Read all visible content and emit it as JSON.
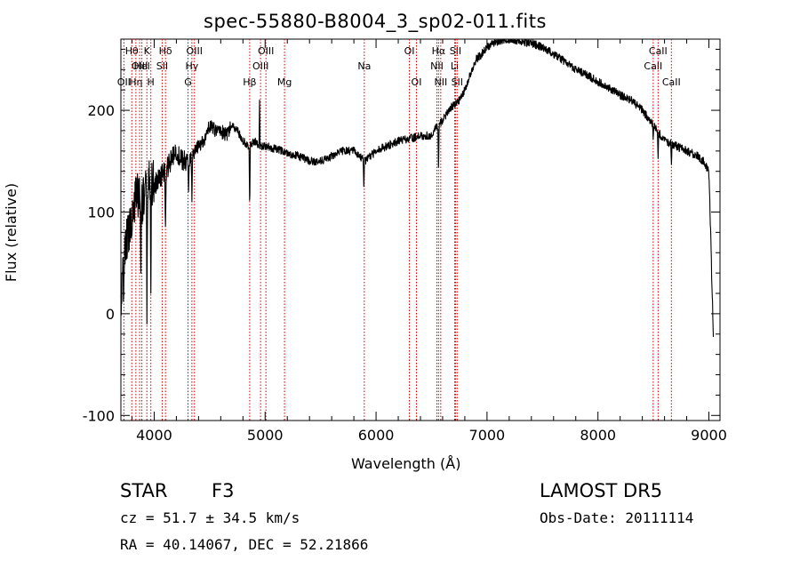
{
  "chart_data": {
    "type": "line",
    "title": "spec-55880-B8004_3_sp02-011.fits",
    "xlabel": "Wavelength (Å)",
    "ylabel": "Flux (relative)",
    "xlim": [
      3700,
      9100
    ],
    "ylim": [
      -105,
      270
    ],
    "xticks": [
      4000,
      5000,
      6000,
      7000,
      8000,
      9000
    ],
    "yticks": [
      -100,
      0,
      100,
      200
    ],
    "grid": false,
    "legend": "none",
    "series": [
      {
        "x": [
          3700,
          3750,
          3800,
          3850,
          3900,
          3950,
          4000,
          4050,
          4100,
          4150,
          4200,
          4250,
          4300,
          4350,
          4400,
          4450,
          4500,
          4550,
          4600,
          4650,
          4700,
          4750,
          4800,
          4850,
          4900,
          4950,
          5000,
          5100,
          5200,
          5300,
          5400,
          5500,
          5600,
          5700,
          5800,
          5900,
          6000,
          6100,
          6200,
          6300,
          6400,
          6500,
          6550,
          6600,
          6650,
          6700,
          6750,
          6800,
          6850,
          6900,
          6950,
          7000,
          7100,
          7200,
          7300,
          7400,
          7500,
          7600,
          7700,
          7800,
          7900,
          8000,
          8100,
          8200,
          8300,
          8400,
          8500,
          8600,
          8700,
          8800,
          8900,
          8950,
          9000,
          9020,
          9040
        ],
        "y": [
          10,
          70,
          100,
          120,
          110,
          130,
          125,
          135,
          140,
          150,
          160,
          150,
          150,
          155,
          165,
          170,
          185,
          180,
          180,
          175,
          185,
          180,
          170,
          165,
          170,
          165,
          165,
          162,
          158,
          155,
          150,
          150,
          155,
          160,
          160,
          150,
          160,
          165,
          170,
          172,
          175,
          175,
          185,
          190,
          200,
          205,
          210,
          220,
          235,
          250,
          255,
          262,
          268,
          270,
          268,
          266,
          262,
          255,
          248,
          240,
          235,
          228,
          222,
          215,
          210,
          200,
          185,
          170,
          165,
          160,
          155,
          150,
          140,
          60,
          -20
        ]
      }
    ],
    "absorption_features": [
      {
        "x": 3880,
        "y": 40
      },
      {
        "x": 3935,
        "y": -10
      },
      {
        "x": 3970,
        "y": 20
      },
      {
        "x": 4102,
        "y": 80
      },
      {
        "x": 4310,
        "y": 120
      },
      {
        "x": 4340,
        "y": 110
      },
      {
        "x": 4861,
        "y": 100
      },
      {
        "x": 5890,
        "y": 125
      },
      {
        "x": 6563,
        "y": 140
      },
      {
        "x": 8498,
        "y": 170
      },
      {
        "x": 8542,
        "y": 150
      },
      {
        "x": 8662,
        "y": 145
      }
    ],
    "emission_features": [
      {
        "x": 4950,
        "y": 210
      }
    ],
    "line_markers": [
      {
        "x": 3727,
        "label": "OII",
        "row": 2
      },
      {
        "x": 3798,
        "label": "Hθ",
        "row": 0
      },
      {
        "x": 3835,
        "label": "Hη",
        "row": 2
      },
      {
        "x": 3869,
        "label": "OIII",
        "row": 1
      },
      {
        "x": 3889,
        "label": "HeI",
        "row": 1
      },
      {
        "x": 3934,
        "label": "K",
        "row": 0
      },
      {
        "x": 3970,
        "label": "H",
        "row": 2
      },
      {
        "x": 4072,
        "label": "SII",
        "row": 1
      },
      {
        "x": 4102,
        "label": "Hδ",
        "row": 0
      },
      {
        "x": 4305,
        "label": "G",
        "row": 2
      },
      {
        "x": 4340,
        "label": "Hγ",
        "row": 1
      },
      {
        "x": 4363,
        "label": "OIII",
        "row": 0
      },
      {
        "x": 4861,
        "label": "Hβ",
        "row": 2
      },
      {
        "x": 4959,
        "label": "OIII",
        "row": 1
      },
      {
        "x": 5007,
        "label": "OIII",
        "row": 0
      },
      {
        "x": 5175,
        "label": "Mg",
        "row": 2
      },
      {
        "x": 5894,
        "label": "Na",
        "row": 1
      },
      {
        "x": 6300,
        "label": "OI",
        "row": 0
      },
      {
        "x": 6364,
        "label": "OI",
        "row": 2
      },
      {
        "x": 6548,
        "label": "NII",
        "row": 1
      },
      {
        "x": 6563,
        "label": "Hα",
        "row": 0
      },
      {
        "x": 6583,
        "label": "NII",
        "row": 2
      },
      {
        "x": 6708,
        "label": "Li",
        "row": 1
      },
      {
        "x": 6716,
        "label": "SII",
        "row": 0
      },
      {
        "x": 6731,
        "label": "SII",
        "row": 2
      },
      {
        "x": 8498,
        "label": "CaII",
        "row": 1
      },
      {
        "x": 8542,
        "label": "CaII",
        "row": 0
      },
      {
        "x": 8662,
        "label": "CaII",
        "row": 2
      }
    ]
  },
  "info": {
    "object_class": "STAR",
    "subclass": "F3",
    "redshift": "cz = 51.7 ± 34.5 km/s",
    "coords": "RA =  40.14067, DEC =  52.21866",
    "survey": "LAMOST DR5",
    "obs_date": "Obs-Date: 20111114"
  },
  "colors": {
    "spectrum": "#000000",
    "marker_lines": "#cc0000",
    "axes": "#000000"
  }
}
